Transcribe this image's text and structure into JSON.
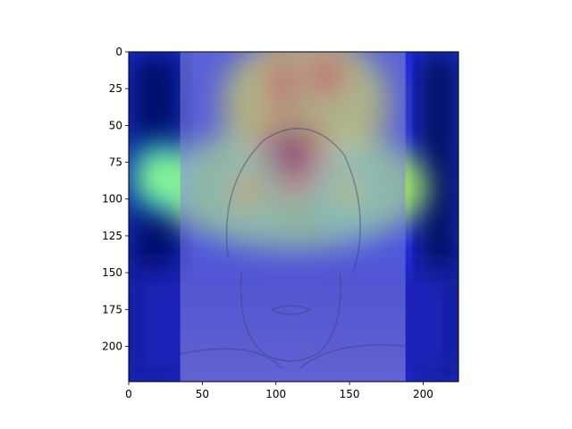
{
  "chart_data": {
    "type": "heatmap",
    "description_of_content": "",
    "xlim": [
      0,
      224
    ],
    "ylim": [
      224,
      0
    ],
    "x_ticks": [
      {
        "value": 0,
        "label": "0"
      },
      {
        "value": 50,
        "label": "50"
      },
      {
        "value": 100,
        "label": "100"
      },
      {
        "value": 150,
        "label": "150"
      },
      {
        "value": 200,
        "label": "200"
      }
    ],
    "y_ticks": [
      {
        "value": 0,
        "label": "0"
      },
      {
        "value": 25,
        "label": "25"
      },
      {
        "value": 50,
        "label": "50"
      },
      {
        "value": 75,
        "label": "75"
      },
      {
        "value": 100,
        "label": "100"
      },
      {
        "value": 125,
        "label": "125"
      },
      {
        "value": 150,
        "label": "150"
      },
      {
        "value": 175,
        "label": "175"
      },
      {
        "value": 200,
        "label": "200"
      }
    ],
    "colormap": "jet",
    "hotspots": [
      {
        "x": 110,
        "y": 65,
        "intensity": 1.0
      },
      {
        "x": 108,
        "y": 20,
        "intensity": 0.85
      },
      {
        "x": 135,
        "y": 15,
        "intensity": 0.8
      },
      {
        "x": 80,
        "y": 95,
        "intensity": 0.65
      },
      {
        "x": 150,
        "y": 95,
        "intensity": 0.6
      },
      {
        "x": 20,
        "y": 85,
        "intensity": 0.5
      }
    ],
    "photo_columns": {
      "start": 35,
      "end": 188
    },
    "grid": false,
    "title": "",
    "xlabel": "",
    "ylabel": ""
  }
}
